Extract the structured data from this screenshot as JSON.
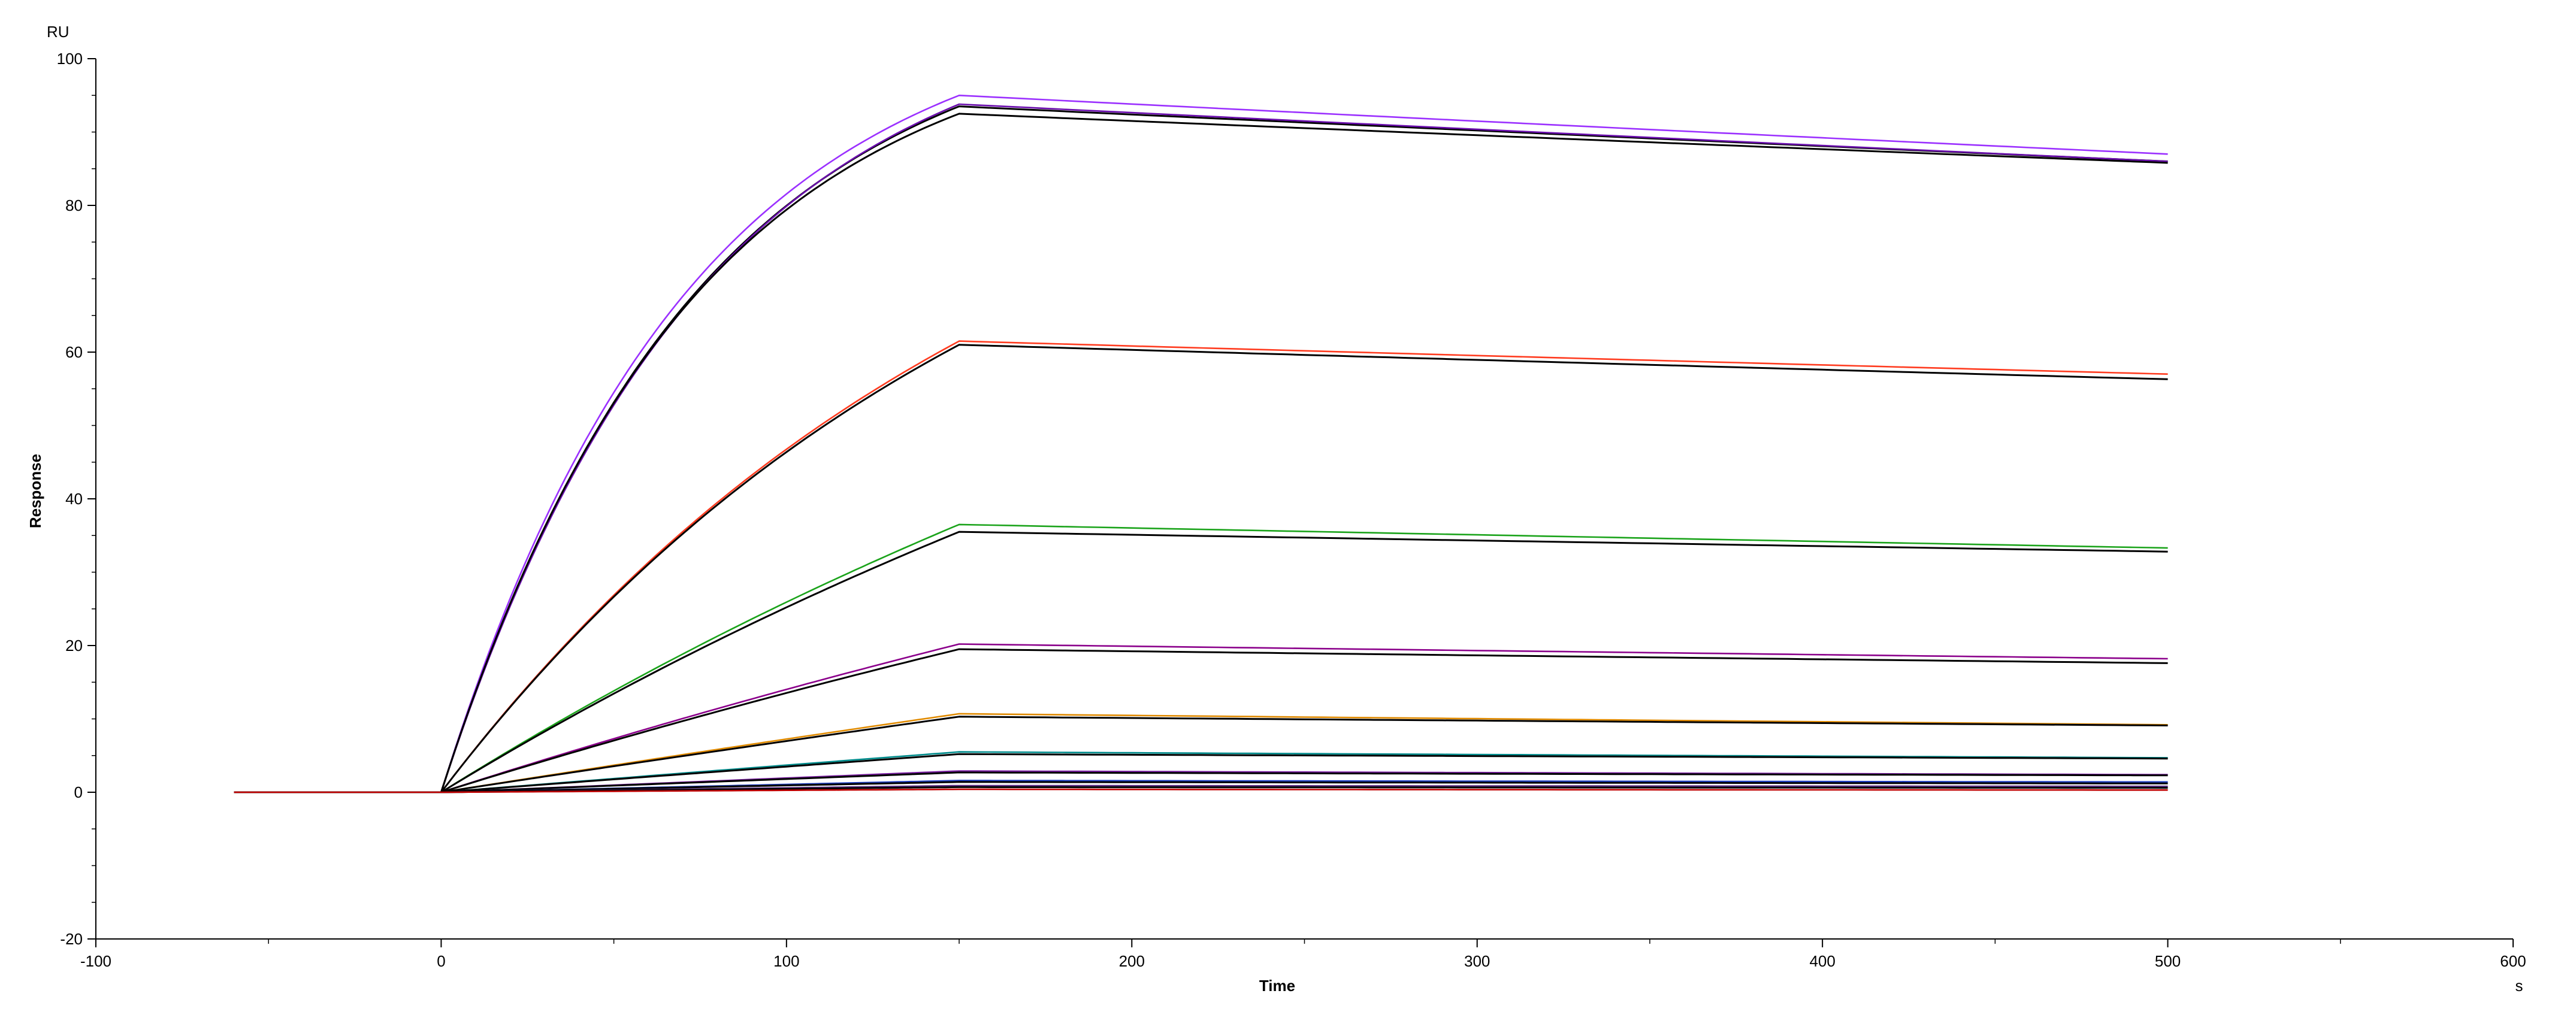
{
  "chart_data": {
    "type": "line",
    "title": "",
    "xlabel": "Time",
    "ylabel": "Response",
    "x_unit": "s",
    "y_unit": "RU",
    "xlim": [
      -100,
      600
    ],
    "ylim": [
      -20,
      100
    ],
    "x_ticks": [
      -100,
      0,
      100,
      200,
      300,
      400,
      500,
      600
    ],
    "y_ticks": [
      -20,
      0,
      20,
      40,
      60,
      80,
      100
    ],
    "x_tick_labels": [
      "-100",
      "0",
      "100",
      "200",
      "300",
      "400",
      "500",
      "600"
    ],
    "y_tick_labels": [
      "-20",
      "0",
      "20",
      "40",
      "60",
      "80",
      "100"
    ],
    "grid": false,
    "legend": "none",
    "association_start": 0,
    "dissociation_start": 150,
    "end_time": 500,
    "baseline_start": -60,
    "series": [
      {
        "color": "#9B30FF",
        "kind": "measured",
        "plateau": 95.0,
        "end": 87.0,
        "curve": 2.1
      },
      {
        "color": "#000000",
        "kind": "fit",
        "plateau": 93.5,
        "end": 86.0,
        "curve": 2.05
      },
      {
        "color": "#6A0DAD",
        "kind": "measured",
        "plateau": 93.8,
        "end": 86.0,
        "curve": 2.0
      },
      {
        "color": "#000000",
        "kind": "fit",
        "plateau": 92.5,
        "end": 85.8,
        "curve": 2.1
      },
      {
        "color": "#FF3B1F",
        "kind": "measured",
        "plateau": 61.5,
        "end": 57.0,
        "curve": 0.9
      },
      {
        "color": "#000000",
        "kind": "fit",
        "plateau": 61.0,
        "end": 56.3,
        "curve": 0.9
      },
      {
        "color": "#1AA31A",
        "kind": "measured",
        "plateau": 36.5,
        "end": 33.3,
        "curve": 0.4
      },
      {
        "color": "#000000",
        "kind": "fit",
        "plateau": 35.5,
        "end": 32.8,
        "curve": 0.4
      },
      {
        "color": "#8B008B",
        "kind": "measured",
        "plateau": 20.2,
        "end": 18.2,
        "curve": 0.25
      },
      {
        "color": "#000000",
        "kind": "fit",
        "plateau": 19.5,
        "end": 17.6,
        "curve": 0.25
      },
      {
        "color": "#E08A00",
        "kind": "measured",
        "plateau": 10.7,
        "end": 9.2,
        "curve": 0.1
      },
      {
        "color": "#000000",
        "kind": "fit",
        "plateau": 10.3,
        "end": 9.1,
        "curve": 0.1
      },
      {
        "color": "#008B8B",
        "kind": "measured",
        "plateau": 5.5,
        "end": 4.7,
        "curve": 0.05
      },
      {
        "color": "#000000",
        "kind": "fit",
        "plateau": 5.2,
        "end": 4.6,
        "curve": 0.05
      },
      {
        "color": "#7B1FA2",
        "kind": "measured",
        "plateau": 2.9,
        "end": 2.4,
        "curve": 0.02
      },
      {
        "color": "#000000",
        "kind": "fit",
        "plateau": 2.7,
        "end": 2.3,
        "curve": 0.02
      },
      {
        "color": "#1F3FBF",
        "kind": "measured",
        "plateau": 1.6,
        "end": 1.4,
        "curve": 0.01
      },
      {
        "color": "#000000",
        "kind": "fit",
        "plateau": 1.4,
        "end": 1.2,
        "curve": 0.01
      },
      {
        "color": "#5A2D82",
        "kind": "measured",
        "plateau": 0.9,
        "end": 0.8,
        "curve": 0.0
      },
      {
        "color": "#000000",
        "kind": "fit",
        "plateau": 0.7,
        "end": 0.6,
        "curve": 0.0
      },
      {
        "color": "#C00000",
        "kind": "measured",
        "plateau": 0.4,
        "end": 0.3,
        "curve": 0.0
      }
    ]
  }
}
